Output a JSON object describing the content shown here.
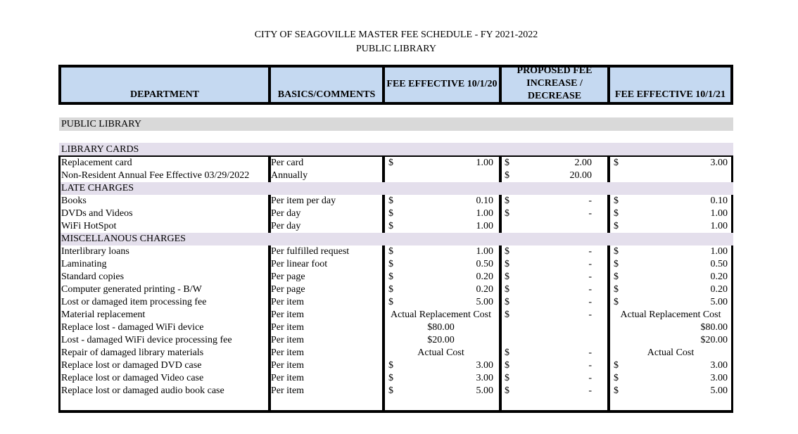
{
  "title": "CITY OF SEAGOVILLE MASTER FEE SCHEDULE - FY 2021-2022",
  "subtitle": "PUBLIC LIBRARY",
  "columns": [
    "DEPARTMENT",
    "BASICS/COMMENTS",
    "FEE EFFECTIVE 10/1/20",
    "PROPOSED FEE INCREASE / DECREASE",
    "FEE EFFECTIVE 10/1/21"
  ],
  "colors": {
    "header_bg": "#c5d9f1",
    "section_bg": "#d9d9d9",
    "subsection_bg": "#e4dfec"
  },
  "section": "PUBLIC LIBRARY",
  "subsection": "LIBRARY CARDS",
  "rows": [
    {
      "name": "Replacement card",
      "basis": "Per card",
      "fee20": {
        "s": "$",
        "v": "1.00"
      },
      "prop": {
        "s": "$",
        "v": "2.00"
      },
      "fee21": {
        "s": "$",
        "v": "3.00"
      }
    },
    {
      "name": "Non-Resident Annual Fee Effective 03/29/2022",
      "basis": "Annually",
      "fee20": {},
      "prop": {
        "s": "$",
        "v": "20.00"
      },
      "fee21": {}
    },
    {
      "header": "LATE CHARGES"
    },
    {
      "name": "Books",
      "basis": "Per item per day",
      "fee20": {
        "s": "$",
        "v": "0.10"
      },
      "prop": {
        "s": "$",
        "v": "-"
      },
      "fee21": {
        "s": "$",
        "v": "0.10"
      }
    },
    {
      "name": "DVDs and Videos",
      "basis": "Per day",
      "fee20": {
        "s": "$",
        "v": "1.00"
      },
      "prop": {
        "s": "$",
        "v": "-"
      },
      "fee21": {
        "s": "$",
        "v": "1.00"
      }
    },
    {
      "name": "WiFi HotSpot",
      "basis": "Per day",
      "fee20": {
        "s": "$",
        "v": "1.00"
      },
      "prop": {},
      "fee21": {
        "s": "$",
        "v": "1.00"
      }
    },
    {
      "header": "MISCELLANOUS CHARGES"
    },
    {
      "name": "Interlibrary loans",
      "basis": "Per fulfilled request",
      "fee20": {
        "s": "$",
        "v": "1.00"
      },
      "prop": {
        "s": "$",
        "v": "-"
      },
      "fee21": {
        "s": "$",
        "v": "1.00"
      }
    },
    {
      "name": "Laminating",
      "basis": "Per linear foot",
      "fee20": {
        "s": "$",
        "v": "0.50"
      },
      "prop": {
        "s": "$",
        "v": "-"
      },
      "fee21": {
        "s": "$",
        "v": "0.50"
      }
    },
    {
      "name": "Standard copies",
      "basis": "Per page",
      "fee20": {
        "s": "$",
        "v": "0.20"
      },
      "prop": {
        "s": "$",
        "v": "-"
      },
      "fee21": {
        "s": "$",
        "v": "0.20"
      }
    },
    {
      "name": "Computer generated printing - B/W",
      "basis": "Per page",
      "fee20": {
        "s": "$",
        "v": "0.20"
      },
      "prop": {
        "s": "$",
        "v": "-"
      },
      "fee21": {
        "s": "$",
        "v": "0.20"
      }
    },
    {
      "name": "Lost or damaged item processing fee",
      "basis": "Per item",
      "fee20": {
        "s": "$",
        "v": "5.00"
      },
      "prop": {
        "s": "$",
        "v": "-"
      },
      "fee21": {
        "s": "$",
        "v": "5.00"
      }
    },
    {
      "name": "Material replacement",
      "basis": "Per item",
      "fee20": {
        "t": "Actual Replacement Cost",
        "a": "center"
      },
      "prop": {
        "s": "$",
        "v": "-"
      },
      "fee21": {
        "t": "Actual Replacement Cost",
        "a": "center"
      }
    },
    {
      "name": "Replace lost - damaged WiFi device",
      "basis": "Per item",
      "fee20": {
        "t": "$80.00",
        "a": "center"
      },
      "prop": {},
      "fee21": {
        "t": "$80.00",
        "a": "right"
      }
    },
    {
      "name": "Lost - damaged WiFi device processing fee",
      "basis": "Per item",
      "fee20": {
        "t": "$20.00",
        "a": "center"
      },
      "prop": {},
      "fee21": {
        "t": "$20.00",
        "a": "right"
      }
    },
    {
      "name": "Repair of damaged library materials",
      "basis": "Per item",
      "fee20": {
        "t": "Actual Cost",
        "a": "center"
      },
      "prop": {
        "s": "$",
        "v": "-"
      },
      "fee21": {
        "t": "Actual Cost",
        "a": "center"
      }
    },
    {
      "name": "Replace lost or damaged DVD case",
      "basis": "Per item",
      "fee20": {
        "s": "$",
        "v": "3.00"
      },
      "prop": {
        "s": "$",
        "v": "-"
      },
      "fee21": {
        "s": "$",
        "v": "3.00"
      }
    },
    {
      "name": "Replace lost or damaged Video case",
      "basis": "Per item",
      "fee20": {
        "s": "$",
        "v": "3.00"
      },
      "prop": {
        "s": "$",
        "v": "-"
      },
      "fee21": {
        "s": "$",
        "v": "3.00"
      }
    },
    {
      "name": "Replace lost or damaged audio book case",
      "basis": "Per item",
      "fee20": {
        "s": "$",
        "v": "5.00"
      },
      "prop": {
        "s": "$",
        "v": "-"
      },
      "fee21": {
        "s": "$",
        "v": "5.00"
      }
    }
  ]
}
